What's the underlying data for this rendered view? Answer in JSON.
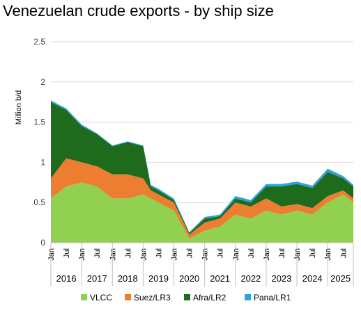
{
  "chart_data": {
    "type": "area",
    "stacked": true,
    "title": "Venezuelan crude exports - by ship size",
    "ylabel": "Million b/d",
    "ylim": [
      0,
      2.5
    ],
    "yticks": [
      "0",
      "0.5",
      "1",
      "1.5",
      "2",
      "2.5"
    ],
    "grid": true,
    "legend_position": "bottom",
    "x_start": "2016-01",
    "x_end": "2025-11",
    "month_tick_labels": [
      "Jan",
      "Jul"
    ],
    "years": [
      "2016",
      "2017",
      "2018",
      "2019",
      "2020",
      "2021",
      "2022",
      "2023",
      "2024",
      "2025"
    ],
    "colors": {
      "VLCC": "#92d050",
      "Suez/LR3": "#ed7d31",
      "Afra/LR2": "#1e6b1e",
      "Pana/LR1": "#2ea3dc"
    },
    "anchors": [
      {
        "x": "2016-01",
        "VLCC": 0.55,
        "Suez/LR3": 0.25,
        "Afra/LR2": 0.95,
        "Pana/LR1": 0.02
      },
      {
        "x": "2016-07",
        "VLCC": 0.7,
        "Suez/LR3": 0.35,
        "Afra/LR2": 0.6,
        "Pana/LR1": 0.02
      },
      {
        "x": "2017-01",
        "VLCC": 0.75,
        "Suez/LR3": 0.25,
        "Afra/LR2": 0.45,
        "Pana/LR1": 0.02
      },
      {
        "x": "2017-07",
        "VLCC": 0.7,
        "Suez/LR3": 0.25,
        "Afra/LR2": 0.4,
        "Pana/LR1": 0.01
      },
      {
        "x": "2018-01",
        "VLCC": 0.55,
        "Suez/LR3": 0.3,
        "Afra/LR2": 0.35,
        "Pana/LR1": 0.01
      },
      {
        "x": "2018-07",
        "VLCC": 0.55,
        "Suez/LR3": 0.3,
        "Afra/LR2": 0.4,
        "Pana/LR1": 0.01
      },
      {
        "x": "2019-01",
        "VLCC": 0.6,
        "Suez/LR3": 0.2,
        "Afra/LR2": 0.4,
        "Pana/LR1": 0.01
      },
      {
        "x": "2019-04",
        "VLCC": 0.55,
        "Suez/LR3": 0.1,
        "Afra/LR2": 0.05,
        "Pana/LR1": 0.02
      },
      {
        "x": "2019-07",
        "VLCC": 0.5,
        "Suez/LR3": 0.1,
        "Afra/LR2": 0.05,
        "Pana/LR1": 0.02
      },
      {
        "x": "2020-01",
        "VLCC": 0.4,
        "Suez/LR3": 0.1,
        "Afra/LR2": 0.03,
        "Pana/LR1": 0.02
      },
      {
        "x": "2020-07",
        "VLCC": 0.05,
        "Suez/LR3": 0.05,
        "Afra/LR2": 0.02,
        "Pana/LR1": 0.01
      },
      {
        "x": "2021-01",
        "VLCC": 0.15,
        "Suez/LR3": 0.1,
        "Afra/LR2": 0.05,
        "Pana/LR1": 0.02
      },
      {
        "x": "2021-07",
        "VLCC": 0.2,
        "Suez/LR3": 0.1,
        "Afra/LR2": 0.03,
        "Pana/LR1": 0.02
      },
      {
        "x": "2022-01",
        "VLCC": 0.35,
        "Suez/LR3": 0.15,
        "Afra/LR2": 0.05,
        "Pana/LR1": 0.03
      },
      {
        "x": "2022-07",
        "VLCC": 0.3,
        "Suez/LR3": 0.15,
        "Afra/LR2": 0.05,
        "Pana/LR1": 0.03
      },
      {
        "x": "2023-01",
        "VLCC": 0.4,
        "Suez/LR3": 0.15,
        "Afra/LR2": 0.15,
        "Pana/LR1": 0.03
      },
      {
        "x": "2023-07",
        "VLCC": 0.35,
        "Suez/LR3": 0.1,
        "Afra/LR2": 0.25,
        "Pana/LR1": 0.03
      },
      {
        "x": "2024-01",
        "VLCC": 0.4,
        "Suez/LR3": 0.08,
        "Afra/LR2": 0.25,
        "Pana/LR1": 0.03
      },
      {
        "x": "2024-07",
        "VLCC": 0.35,
        "Suez/LR3": 0.08,
        "Afra/LR2": 0.25,
        "Pana/LR1": 0.03
      },
      {
        "x": "2025-01",
        "VLCC": 0.5,
        "Suez/LR3": 0.08,
        "Afra/LR2": 0.3,
        "Pana/LR1": 0.04
      },
      {
        "x": "2025-07",
        "VLCC": 0.6,
        "Suez/LR3": 0.05,
        "Afra/LR2": 0.15,
        "Pana/LR1": 0.03
      },
      {
        "x": "2025-11",
        "VLCC": 0.5,
        "Suez/LR3": 0.05,
        "Afra/LR2": 0.15,
        "Pana/LR1": 0.02
      }
    ],
    "series": [
      {
        "name": "VLCC"
      },
      {
        "name": "Suez/LR3"
      },
      {
        "name": "Afra/LR2"
      },
      {
        "name": "Pana/LR1"
      }
    ]
  }
}
